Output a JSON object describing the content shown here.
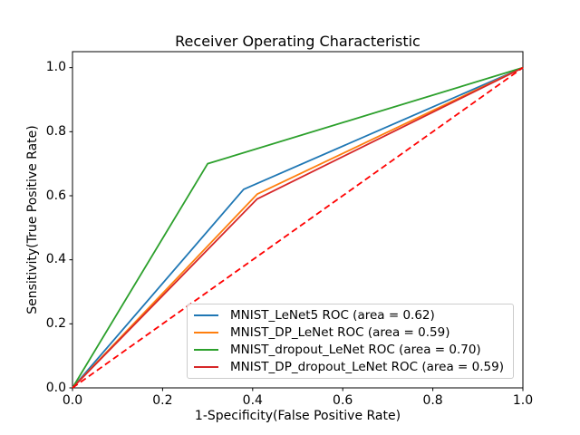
{
  "figure": {
    "background": "#ffffff",
    "spine_color": "#000000",
    "tick_color": "#000000"
  },
  "chart_data": {
    "type": "line",
    "title": "Receiver Operating Characteristic",
    "xlabel": "1-Specificity(False Positive Rate)",
    "ylabel": "Sensitivity(True Positive Rate)",
    "xlim": [
      0.0,
      1.0
    ],
    "ylim": [
      0.0,
      1.05
    ],
    "grid": false,
    "legend_position": "lower right",
    "xticks": {
      "values": [
        0.0,
        0.2,
        0.4,
        0.6,
        0.8,
        1.0
      ],
      "labels": [
        "0.0",
        "0.2",
        "0.4",
        "0.6",
        "0.8",
        "1.0"
      ]
    },
    "yticks": {
      "values": [
        0.0,
        0.2,
        0.4,
        0.6,
        0.8,
        1.0
      ],
      "labels": [
        "0.0",
        "0.2",
        "0.4",
        "0.6",
        "0.8",
        "1.0"
      ]
    },
    "series": [
      {
        "name": "MNIST_LeNet5",
        "label": "MNIST_LeNet5 ROC (area = 0.62)",
        "color": "#1f77b4",
        "style": "solid",
        "area": 0.62,
        "points": [
          [
            0.0,
            0.0
          ],
          [
            0.38,
            0.62
          ],
          [
            1.0,
            1.0
          ]
        ]
      },
      {
        "name": "MNIST_DP_LeNet",
        "label": "MNIST_DP_LeNet ROC (area = 0.59)",
        "color": "#ff7f0e",
        "style": "solid",
        "area": 0.59,
        "points": [
          [
            0.0,
            0.0
          ],
          [
            0.41,
            0.605
          ],
          [
            1.0,
            1.0
          ]
        ]
      },
      {
        "name": "MNIST_dropout_LeNet",
        "label": "MNIST_dropout_LeNet ROC (area = 0.70)",
        "color": "#2ca02c",
        "style": "solid",
        "area": 0.7,
        "points": [
          [
            0.0,
            0.0
          ],
          [
            0.3,
            0.7
          ],
          [
            1.0,
            1.0
          ]
        ]
      },
      {
        "name": "MNIST_DP_dropout_LeNet",
        "label": "MNIST_DP_dropout_LeNet ROC (area = 0.59)",
        "color": "#d62728",
        "style": "solid",
        "area": 0.59,
        "points": [
          [
            0.0,
            0.0
          ],
          [
            0.41,
            0.59
          ],
          [
            1.0,
            1.0
          ]
        ]
      }
    ],
    "reference_line": {
      "name": "chance-diagonal",
      "color": "#ff0000",
      "style": "dashed",
      "in_legend": false,
      "points": [
        [
          0.0,
          0.0
        ],
        [
          1.0,
          1.0
        ]
      ]
    }
  }
}
